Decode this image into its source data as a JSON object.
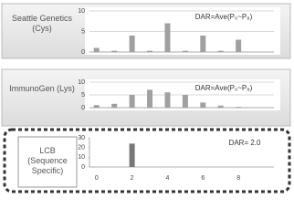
{
  "chart_data": [
    {
      "type": "bar",
      "label": "Seattle Genetics (Cys)",
      "annotation": "DAR=Ave(P₀~P₈)",
      "x": [
        0,
        1,
        2,
        3,
        4,
        5,
        6,
        7,
        8
      ],
      "values": [
        1,
        0.3,
        4,
        0.3,
        7,
        0.3,
        4,
        0.3,
        3
      ],
      "color": "#a0a0a0",
      "xlim": [
        -0.4,
        10
      ],
      "ylim": [
        0,
        10
      ],
      "yticks": [
        0,
        5,
        10
      ],
      "grid": true
    },
    {
      "type": "bar",
      "label": "ImmunoGen (Lys)",
      "annotation": "DAR=Ave(P₀~P₈)",
      "x": [
        0,
        1,
        2,
        3,
        4,
        5,
        6,
        7,
        8
      ],
      "values": [
        1,
        1.5,
        5,
        7,
        6,
        5,
        2,
        0.8,
        0.3
      ],
      "color": "#a0a0a0",
      "xlim": [
        -0.4,
        10
      ],
      "ylim": [
        0,
        10
      ],
      "yticks": [
        0,
        5,
        10
      ],
      "grid": true
    },
    {
      "type": "bar",
      "label": "LCB (Sequence Specific)",
      "annotation": "DAR= 2.0",
      "x": [
        2
      ],
      "values": [
        24
      ],
      "color": "#777777",
      "xlim": [
        -0.4,
        10
      ],
      "xticks": [
        0,
        2,
        4,
        6,
        8
      ],
      "ylim": [
        0,
        30
      ],
      "yticks": [
        0,
        10,
        20,
        30
      ],
      "grid": false
    }
  ]
}
